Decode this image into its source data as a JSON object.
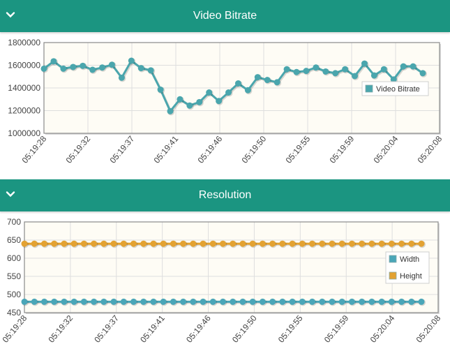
{
  "colors": {
    "header": "#1b9581",
    "bitrate": "#4aa6ad",
    "width": "#4aa6b8",
    "height": "#e3a232",
    "plot_bg": "#fefcf5"
  },
  "panels": [
    {
      "title": "Video Bitrate",
      "toggle_icon": "chevron-down-icon"
    },
    {
      "title": "Resolution",
      "toggle_icon": "chevron-down-icon"
    }
  ],
  "chart_data": [
    {
      "type": "line",
      "x_ticks": [
        "05:19:28",
        "05:19:32",
        "05:19:37",
        "05:19:41",
        "05:19:46",
        "05:19:50",
        "05:19:55",
        "05:19:59",
        "05:20:04",
        "05:20:08"
      ],
      "y_ticks": [
        "1800000",
        "1600000",
        "1400000",
        "1200000",
        "1000000"
      ],
      "ylim": [
        1000000,
        1800000
      ],
      "grid": true,
      "legend_position": "right",
      "series": [
        {
          "name": "Video Bitrate",
          "color": "#4aa6ad",
          "values": [
            1570000,
            1635000,
            1570000,
            1585000,
            1595000,
            1560000,
            1580000,
            1605000,
            1490000,
            1640000,
            1575000,
            1555000,
            1385000,
            1195000,
            1300000,
            1245000,
            1275000,
            1360000,
            1285000,
            1360000,
            1440000,
            1380000,
            1495000,
            1470000,
            1450000,
            1565000,
            1540000,
            1550000,
            1580000,
            1545000,
            1530000,
            1565000,
            1505000,
            1615000,
            1510000,
            1565000,
            1475000,
            1590000,
            1590000,
            1530000
          ]
        }
      ]
    },
    {
      "type": "line",
      "x_ticks": [
        "05:19:28",
        "05:19:32",
        "05:19:37",
        "05:19:41",
        "05:19:46",
        "05:19:50",
        "05:19:55",
        "05:19:59",
        "05:20:04",
        "05:20:08"
      ],
      "y_ticks": [
        "700",
        "650",
        "600",
        "550",
        "500",
        "450"
      ],
      "ylim": [
        450,
        700
      ],
      "grid": true,
      "legend_position": "right",
      "series": [
        {
          "name": "Width",
          "color": "#4aa6b8",
          "values": [
            480,
            480,
            480,
            480,
            480,
            480,
            480,
            480,
            480,
            480,
            480,
            480,
            480,
            480,
            480,
            480,
            480,
            480,
            480,
            480,
            480,
            480,
            480,
            480,
            480,
            480,
            480,
            480,
            480,
            480,
            480,
            480,
            480,
            480,
            480,
            480,
            480,
            480,
            480,
            480,
            480
          ]
        },
        {
          "name": "Height",
          "color": "#e3a232",
          "values": [
            640,
            640,
            640,
            640,
            640,
            640,
            640,
            640,
            640,
            640,
            640,
            640,
            640,
            640,
            640,
            640,
            640,
            640,
            640,
            640,
            640,
            640,
            640,
            640,
            640,
            640,
            640,
            640,
            640,
            640,
            640,
            640,
            640,
            640,
            640,
            640,
            640,
            640,
            640,
            640,
            640
          ]
        }
      ]
    }
  ]
}
